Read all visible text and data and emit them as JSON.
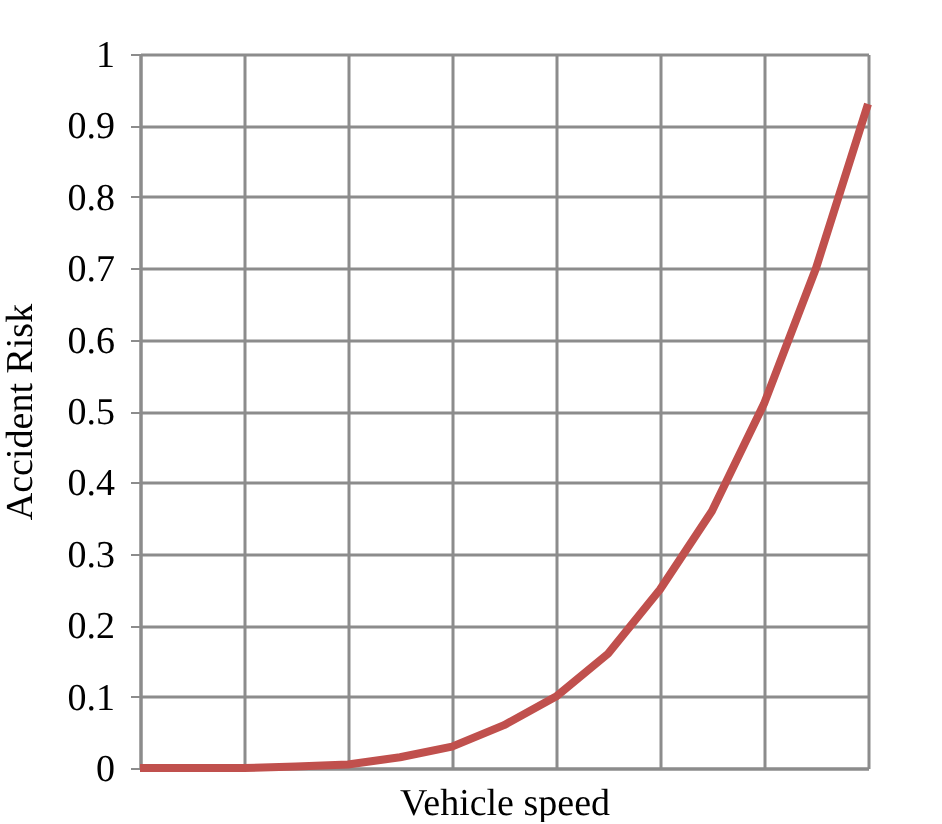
{
  "chart_data": {
    "type": "line",
    "xlabel": "Vehicle speed",
    "ylabel": "Accident Risk",
    "categories": [
      null,
      null,
      null,
      null,
      null,
      null,
      null,
      null,
      null,
      null,
      null,
      null,
      null,
      null,
      null
    ],
    "series": [
      {
        "color": "#c0504d",
        "values": [
          0,
          0,
          0,
          0.002,
          0.005,
          0.015,
          0.03,
          0.06,
          0.1,
          0.16,
          0.25,
          0.36,
          0.51,
          0.7,
          0.93
        ]
      }
    ],
    "ylim": [
      0,
      1
    ],
    "yticks": [
      0,
      0.1,
      0.2,
      0.3,
      0.4,
      0.5,
      0.6,
      0.7,
      0.8,
      0.9,
      1
    ],
    "grid": true,
    "tick_labels": "y"
  }
}
